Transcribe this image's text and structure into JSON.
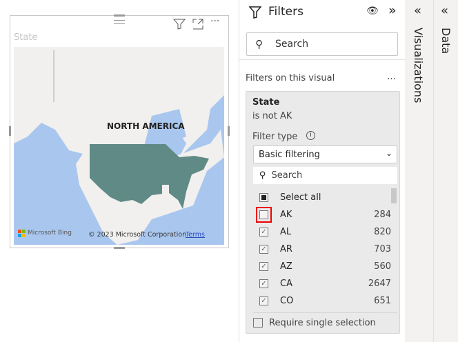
{
  "visual": {
    "title": "State",
    "map_label": "NORTH AMERICA",
    "bing_label": "Microsoft Bing",
    "copyright": "© 2023 Microsoft Corporation",
    "terms_link": "Terms",
    "fill_color": "#5f8a86"
  },
  "filters": {
    "title": "Filters",
    "search_placeholder": "Search",
    "section_label": "Filters on this visual",
    "card": {
      "field": "State",
      "summary": "is not AK",
      "filter_type_label": "Filter type",
      "filter_type_value": "Basic filtering",
      "search_placeholder": "Search",
      "select_all": "Select all",
      "items": [
        {
          "label": "AK",
          "count": "284",
          "checked": false
        },
        {
          "label": "AL",
          "count": "820",
          "checked": true
        },
        {
          "label": "AR",
          "count": "703",
          "checked": true
        },
        {
          "label": "AZ",
          "count": "560",
          "checked": true
        },
        {
          "label": "CA",
          "count": "2647",
          "checked": true
        },
        {
          "label": "CO",
          "count": "651",
          "checked": true
        }
      ],
      "require_single": "Require single selection"
    }
  },
  "panes": {
    "visualizations": "Visualizations",
    "data": "Data"
  }
}
